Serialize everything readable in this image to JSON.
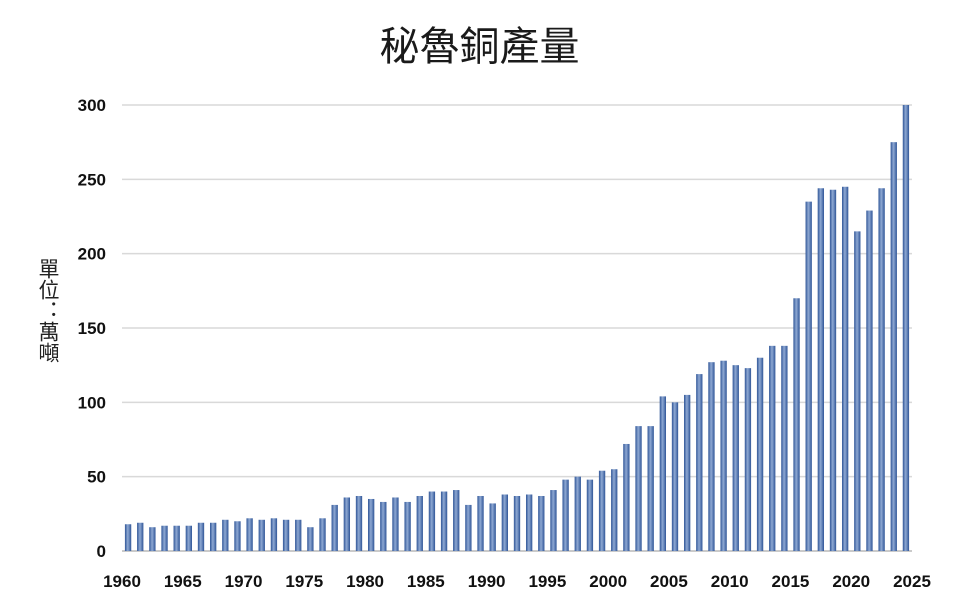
{
  "chart_data": {
    "type": "bar",
    "title": "秘魯銅產量",
    "ylabel": "單位：萬噸",
    "xlabel": "",
    "ylim": [
      0,
      300
    ],
    "yticks": [
      0,
      50,
      100,
      150,
      200,
      250,
      300
    ],
    "xticks": [
      1960,
      1965,
      1970,
      1975,
      1980,
      1985,
      1990,
      1995,
      2000,
      2005,
      2010,
      2015,
      2020,
      2025
    ],
    "grid": "horizontal",
    "bar_color": "#4a6fa5",
    "categories": [
      1960,
      1961,
      1962,
      1963,
      1964,
      1965,
      1966,
      1967,
      1968,
      1969,
      1970,
      1971,
      1972,
      1973,
      1974,
      1975,
      1976,
      1977,
      1978,
      1979,
      1980,
      1981,
      1982,
      1983,
      1984,
      1985,
      1986,
      1987,
      1988,
      1989,
      1990,
      1991,
      1992,
      1993,
      1994,
      1995,
      1996,
      1997,
      1998,
      1999,
      2000,
      2001,
      2002,
      2003,
      2004,
      2005,
      2006,
      2007,
      2008,
      2009,
      2010,
      2011,
      2012,
      2013,
      2014,
      2015,
      2016,
      2017,
      2018,
      2019,
      2020,
      2021,
      2022,
      2023,
      2024
    ],
    "values": [
      18,
      19,
      16,
      17,
      17,
      17,
      19,
      19,
      21,
      20,
      22,
      21,
      22,
      21,
      21,
      16,
      22,
      31,
      36,
      37,
      35,
      33,
      36,
      33,
      37,
      40,
      40,
      41,
      31,
      37,
      32,
      38,
      37,
      38,
      37,
      41,
      48,
      50,
      48,
      54,
      55,
      72,
      84,
      84,
      104,
      100,
      105,
      119,
      127,
      128,
      125,
      123,
      130,
      138,
      138,
      170,
      235,
      244,
      243,
      245,
      215,
      229,
      244,
      275,
      300
    ]
  }
}
